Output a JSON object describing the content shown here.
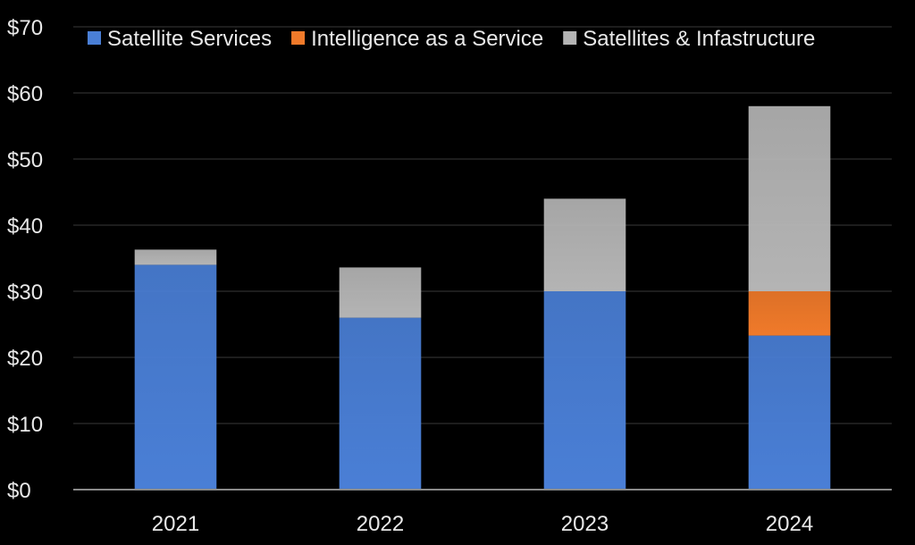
{
  "chart_data": {
    "type": "bar",
    "stacked": true,
    "categories": [
      "2021",
      "2022",
      "2023",
      "2024"
    ],
    "series": [
      {
        "name": "Satellite Services",
        "color": "#4a7fd6",
        "values": [
          34,
          26,
          30,
          23.3
        ]
      },
      {
        "name": "Intelligence as a Service",
        "color": "#f07a2a",
        "values": [
          0,
          0,
          0,
          6.7
        ]
      },
      {
        "name": "Satellites & Infastructure",
        "color": "#b4b4b4",
        "values": [
          2.3,
          7.6,
          14,
          28
        ]
      }
    ],
    "ylim": [
      0,
      70
    ],
    "ytick_values": [
      0,
      10,
      20,
      30,
      40,
      50,
      60,
      70
    ],
    "ytick_labels": [
      "$0",
      "$10",
      "$20",
      "$30",
      "$40",
      "$50",
      "$60",
      "$70"
    ],
    "legend_position": "top",
    "grid": true,
    "background": "#000000",
    "title": "",
    "xlabel": "",
    "ylabel": ""
  }
}
